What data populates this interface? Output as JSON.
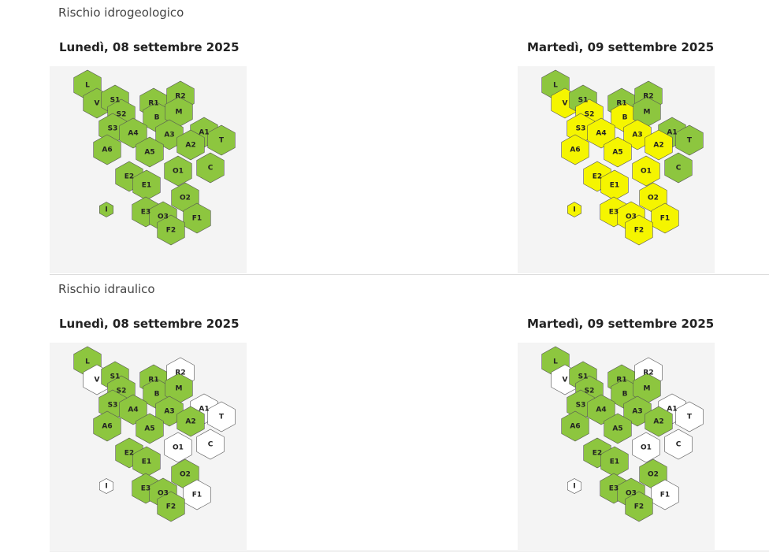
{
  "sections": [
    {
      "title": "Rischio idrogeologico",
      "days": [
        {
          "date": "Lunedì, 08 settembre 2025",
          "zones": [
            {
              "label": "L",
              "color": "#8dc63f"
            },
            {
              "label": "V",
              "color": "#8dc63f"
            },
            {
              "label": "S1",
              "color": "#8dc63f"
            },
            {
              "label": "S2",
              "color": "#8dc63f"
            },
            {
              "label": "S3",
              "color": "#8dc63f"
            },
            {
              "label": "R1",
              "color": "#8dc63f"
            },
            {
              "label": "R2",
              "color": "#8dc63f"
            },
            {
              "label": "B",
              "color": "#8dc63f"
            },
            {
              "label": "M",
              "color": "#8dc63f"
            },
            {
              "label": "A4",
              "color": "#8dc63f"
            },
            {
              "label": "A3",
              "color": "#8dc63f"
            },
            {
              "label": "A1",
              "color": "#8dc63f"
            },
            {
              "label": "T",
              "color": "#8dc63f"
            },
            {
              "label": "A6",
              "color": "#8dc63f"
            },
            {
              "label": "A5",
              "color": "#8dc63f"
            },
            {
              "label": "A2",
              "color": "#8dc63f"
            },
            {
              "label": "C",
              "color": "#8dc63f"
            },
            {
              "label": "O1",
              "color": "#8dc63f"
            },
            {
              "label": "E2",
              "color": "#8dc63f"
            },
            {
              "label": "E1",
              "color": "#8dc63f"
            },
            {
              "label": "O2",
              "color": "#8dc63f"
            },
            {
              "label": "I",
              "color": "#8dc63f"
            },
            {
              "label": "E3",
              "color": "#8dc63f"
            },
            {
              "label": "O3",
              "color": "#8dc63f"
            },
            {
              "label": "F1",
              "color": "#8dc63f"
            },
            {
              "label": "F2",
              "color": "#8dc63f"
            }
          ]
        },
        {
          "date": "Martedì, 09 settembre 2025",
          "zones": [
            {
              "label": "L",
              "color": "#8dc63f"
            },
            {
              "label": "V",
              "color": "#f5f500"
            },
            {
              "label": "S1",
              "color": "#8dc63f"
            },
            {
              "label": "S2",
              "color": "#f5f500"
            },
            {
              "label": "S3",
              "color": "#f5f500"
            },
            {
              "label": "R1",
              "color": "#8dc63f"
            },
            {
              "label": "R2",
              "color": "#8dc63f"
            },
            {
              "label": "B",
              "color": "#f5f500"
            },
            {
              "label": "M",
              "color": "#8dc63f"
            },
            {
              "label": "A4",
              "color": "#f5f500"
            },
            {
              "label": "A3",
              "color": "#f5f500"
            },
            {
              "label": "A1",
              "color": "#8dc63f"
            },
            {
              "label": "T",
              "color": "#8dc63f"
            },
            {
              "label": "A6",
              "color": "#f5f500"
            },
            {
              "label": "A5",
              "color": "#f5f500"
            },
            {
              "label": "A2",
              "color": "#f5f500"
            },
            {
              "label": "C",
              "color": "#8dc63f"
            },
            {
              "label": "O1",
              "color": "#f5f500"
            },
            {
              "label": "E2",
              "color": "#f5f500"
            },
            {
              "label": "E1",
              "color": "#f5f500"
            },
            {
              "label": "O2",
              "color": "#f5f500"
            },
            {
              "label": "I",
              "color": "#f5f500"
            },
            {
              "label": "E3",
              "color": "#f5f500"
            },
            {
              "label": "O3",
              "color": "#f5f500"
            },
            {
              "label": "F1",
              "color": "#f5f500"
            },
            {
              "label": "F2",
              "color": "#f5f500"
            }
          ]
        }
      ]
    },
    {
      "title": "Rischio idraulico",
      "days": [
        {
          "date": "Lunedì, 08 settembre 2025",
          "zones": [
            {
              "label": "L",
              "color": "#8dc63f"
            },
            {
              "label": "V",
              "color": "#ffffff"
            },
            {
              "label": "S1",
              "color": "#8dc63f"
            },
            {
              "label": "S2",
              "color": "#8dc63f"
            },
            {
              "label": "S3",
              "color": "#8dc63f"
            },
            {
              "label": "R1",
              "color": "#8dc63f"
            },
            {
              "label": "R2",
              "color": "#ffffff"
            },
            {
              "label": "B",
              "color": "#8dc63f"
            },
            {
              "label": "M",
              "color": "#8dc63f"
            },
            {
              "label": "A4",
              "color": "#8dc63f"
            },
            {
              "label": "A3",
              "color": "#8dc63f"
            },
            {
              "label": "A1",
              "color": "#ffffff"
            },
            {
              "label": "T",
              "color": "#ffffff"
            },
            {
              "label": "A6",
              "color": "#8dc63f"
            },
            {
              "label": "A5",
              "color": "#8dc63f"
            },
            {
              "label": "A2",
              "color": "#8dc63f"
            },
            {
              "label": "C",
              "color": "#ffffff"
            },
            {
              "label": "O1",
              "color": "#ffffff"
            },
            {
              "label": "E2",
              "color": "#8dc63f"
            },
            {
              "label": "E1",
              "color": "#8dc63f"
            },
            {
              "label": "O2",
              "color": "#8dc63f"
            },
            {
              "label": "I",
              "color": "#ffffff"
            },
            {
              "label": "E3",
              "color": "#8dc63f"
            },
            {
              "label": "O3",
              "color": "#8dc63f"
            },
            {
              "label": "F1",
              "color": "#ffffff"
            },
            {
              "label": "F2",
              "color": "#8dc63f"
            }
          ]
        },
        {
          "date": "Martedì, 09 settembre 2025",
          "zones": [
            {
              "label": "L",
              "color": "#8dc63f"
            },
            {
              "label": "V",
              "color": "#ffffff"
            },
            {
              "label": "S1",
              "color": "#8dc63f"
            },
            {
              "label": "S2",
              "color": "#8dc63f"
            },
            {
              "label": "S3",
              "color": "#8dc63f"
            },
            {
              "label": "R1",
              "color": "#8dc63f"
            },
            {
              "label": "R2",
              "color": "#ffffff"
            },
            {
              "label": "B",
              "color": "#8dc63f"
            },
            {
              "label": "M",
              "color": "#8dc63f"
            },
            {
              "label": "A4",
              "color": "#8dc63f"
            },
            {
              "label": "A3",
              "color": "#8dc63f"
            },
            {
              "label": "A1",
              "color": "#ffffff"
            },
            {
              "label": "T",
              "color": "#ffffff"
            },
            {
              "label": "A6",
              "color": "#8dc63f"
            },
            {
              "label": "A5",
              "color": "#8dc63f"
            },
            {
              "label": "A2",
              "color": "#8dc63f"
            },
            {
              "label": "C",
              "color": "#ffffff"
            },
            {
              "label": "O1",
              "color": "#ffffff"
            },
            {
              "label": "E2",
              "color": "#8dc63f"
            },
            {
              "label": "E1",
              "color": "#8dc63f"
            },
            {
              "label": "O2",
              "color": "#8dc63f"
            },
            {
              "label": "I",
              "color": "#ffffff"
            },
            {
              "label": "E3",
              "color": "#8dc63f"
            },
            {
              "label": "O3",
              "color": "#8dc63f"
            },
            {
              "label": "F1",
              "color": "#ffffff"
            },
            {
              "label": "F2",
              "color": "#8dc63f"
            }
          ]
        }
      ]
    }
  ]
}
